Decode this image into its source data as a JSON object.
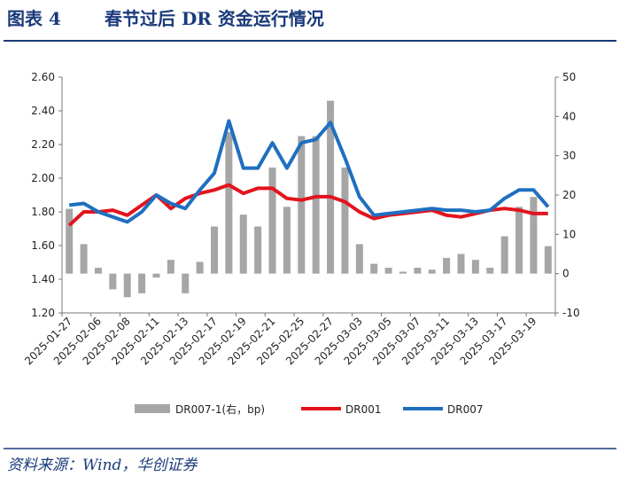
{
  "header": {
    "label": "图表 4",
    "title": "春节过后 DR 资金运行情况"
  },
  "chart_data": {
    "type": "bar_line",
    "categories": [
      "2025-01-27",
      null,
      "2025-02-06",
      null,
      "2025-02-08",
      null,
      "2025-02-11",
      null,
      "2025-02-13",
      null,
      "2025-02-17",
      null,
      "2025-02-19",
      null,
      "2025-02-21",
      null,
      "2025-02-25",
      null,
      "2025-02-27",
      null,
      "2025-03-03",
      null,
      "2025-03-05",
      null,
      "2025-03-07",
      null,
      "2025-03-11",
      null,
      "2025-03-13",
      null,
      "2025-03-17",
      null,
      "2025-03-19",
      null
    ],
    "series": [
      {
        "name": "DR007-1(右，bp)",
        "type": "bar",
        "axis": "y2",
        "color": "#a6a6a6",
        "values": [
          16.5,
          7.5,
          1.5,
          -4,
          -6,
          -5,
          -1,
          3.5,
          -5,
          3,
          12,
          36,
          15,
          12,
          27,
          17,
          35,
          35,
          44,
          27,
          7.5,
          2.5,
          1.5,
          0.5,
          1.5,
          1,
          4,
          5,
          3.5,
          1.5,
          9.5,
          17,
          19.5,
          7
        ]
      },
      {
        "name": "DR001",
        "type": "line",
        "color": "#e3141c",
        "values": [
          1.72,
          1.8,
          1.8,
          1.81,
          1.78,
          1.84,
          1.9,
          1.82,
          1.88,
          1.91,
          1.93,
          1.96,
          1.91,
          1.94,
          1.94,
          1.88,
          1.87,
          1.89,
          1.89,
          1.86,
          1.8,
          1.76,
          1.78,
          1.79,
          1.8,
          1.81,
          1.78,
          1.77,
          1.79,
          1.81,
          1.82,
          1.81,
          1.79,
          1.79
        ]
      },
      {
        "name": "DR007",
        "type": "line",
        "color": "#1f6fc0",
        "values": [
          1.84,
          1.85,
          1.8,
          1.77,
          1.74,
          1.8,
          1.9,
          1.85,
          1.82,
          1.93,
          2.03,
          2.34,
          2.06,
          2.06,
          2.21,
          2.06,
          2.21,
          2.23,
          2.33,
          2.12,
          1.89,
          1.78,
          1.79,
          1.8,
          1.81,
          1.82,
          1.81,
          1.81,
          1.8,
          1.81,
          1.88,
          1.93,
          1.93,
          1.83
        ]
      }
    ],
    "ylim": [
      1.2,
      2.6
    ],
    "yticks": [
      {
        "value": 1.2,
        "label": "1.20"
      },
      {
        "value": 1.4,
        "label": "1.40"
      },
      {
        "value": 1.6,
        "label": "1.60"
      },
      {
        "value": 1.8,
        "label": "1.80"
      },
      {
        "value": 2.0,
        "label": "2.00"
      },
      {
        "value": 2.2,
        "label": "2.20"
      },
      {
        "value": 2.4,
        "label": "2.40"
      },
      {
        "value": 2.6,
        "label": "2.60"
      }
    ],
    "y2lim": [
      -10,
      50
    ],
    "y2ticks": [
      -10,
      0,
      10,
      20,
      30,
      40,
      50
    ],
    "grid": false
  },
  "source": "资料来源：Wind，华创证券"
}
